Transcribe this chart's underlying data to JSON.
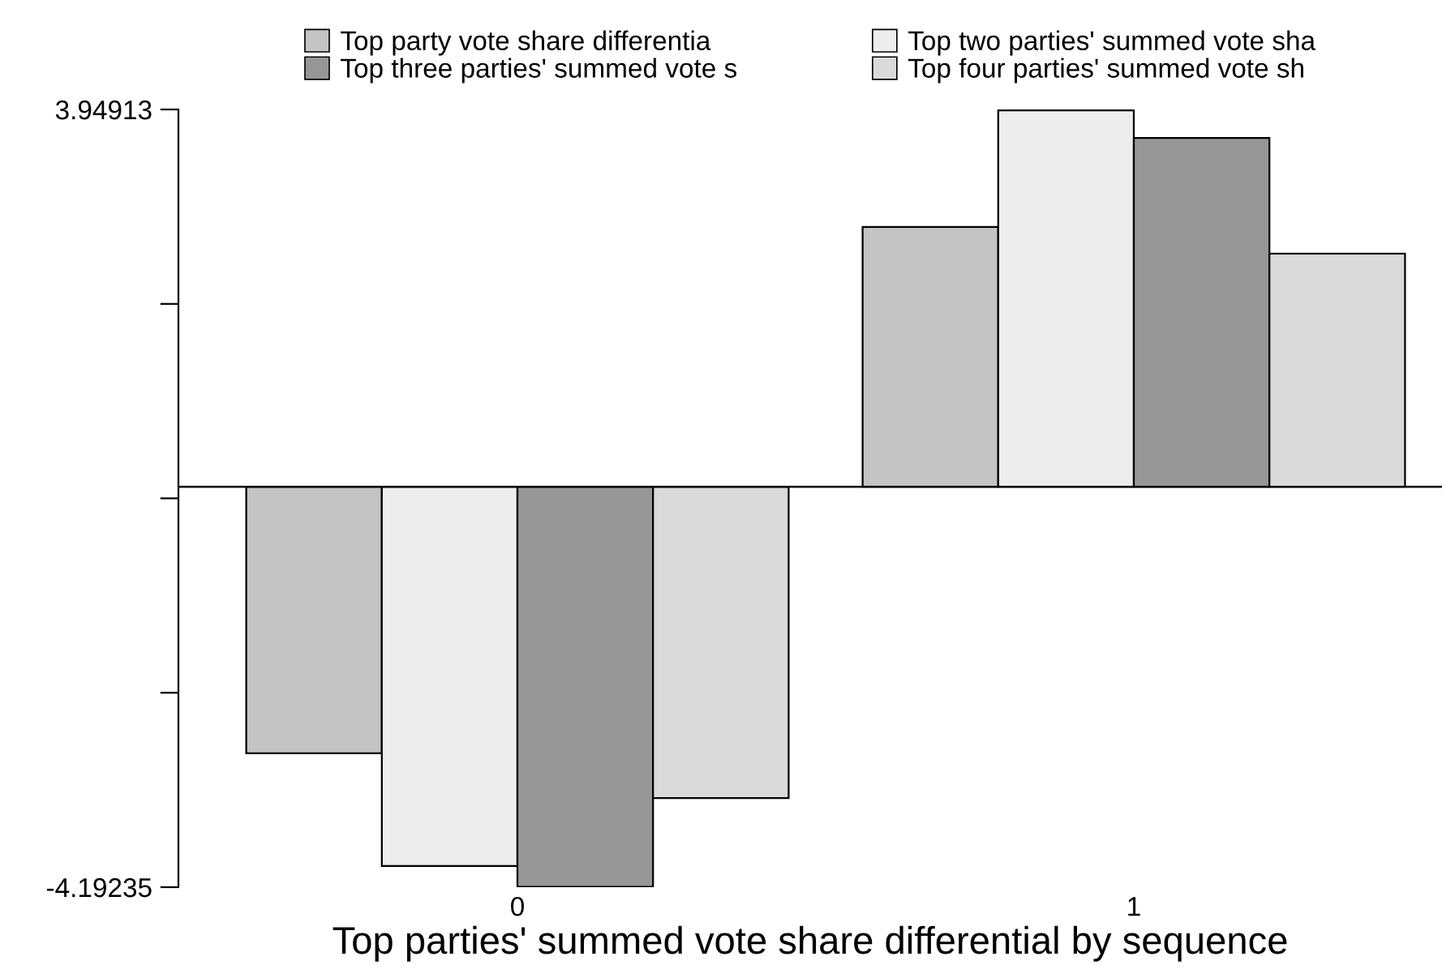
{
  "chart_data": {
    "type": "bar",
    "xlabel": "Top parties' summed vote share differential by sequence",
    "categories": [
      "0",
      "1"
    ],
    "series": [
      {
        "name": "Top party vote share differentia",
        "color": "#c4c4c4",
        "values": [
          -2.79,
          2.72
        ]
      },
      {
        "name": "Top two parties' summed vote sha",
        "color": "#ededed",
        "values": [
          -3.97,
          3.94
        ]
      },
      {
        "name": "Top three parties' summed vote s",
        "color": "#979797",
        "values": [
          -4.19,
          3.65
        ]
      },
      {
        "name": "Top four parties' summed vote sh",
        "color": "#dadada",
        "values": [
          -3.26,
          2.44
        ]
      }
    ],
    "ylim": [
      -4.19235,
      3.94913
    ],
    "yticks": [
      3.94913,
      {
        "value": 1.91376,
        "label": null
      },
      {
        "value": -0.12161,
        "label": null
      },
      {
        "value": -2.15698,
        "label": null
      },
      -4.19235
    ],
    "ref_lines": [
      {
        "axis": "y",
        "value": 0,
        "color": "#000000"
      }
    ],
    "grid": false,
    "legend": "top"
  }
}
